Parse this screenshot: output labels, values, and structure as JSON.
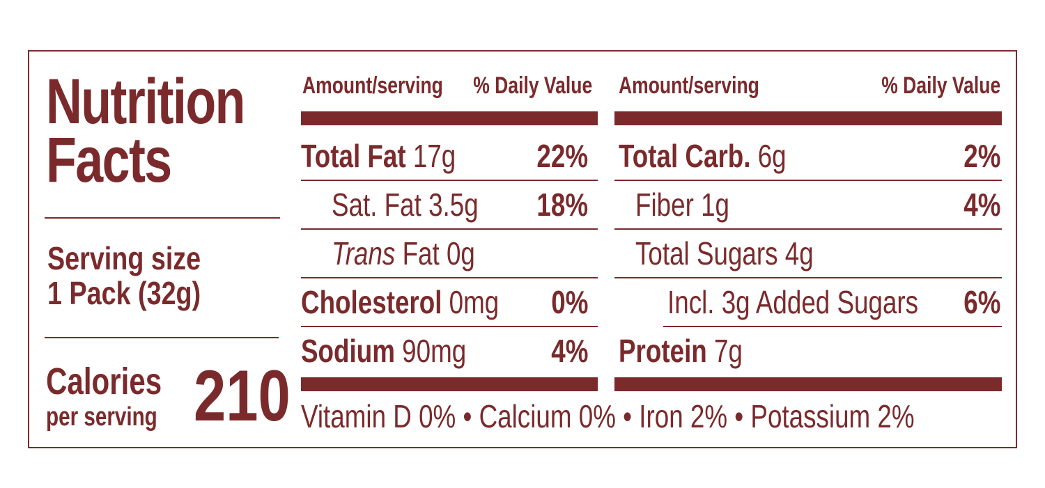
{
  "header": {
    "title_line1": "Nutrition",
    "title_line2": "Facts"
  },
  "serving": {
    "label": "Serving size",
    "value": "1 Pack (32g)"
  },
  "calories": {
    "label": "Calories",
    "sub": "per serving",
    "value": "210"
  },
  "columns": {
    "amount_header": "Amount/serving",
    "dv_header": "% Daily Value"
  },
  "left_rows": [
    {
      "name": "Total Fat",
      "amount": "17g",
      "pct": "22%"
    },
    {
      "name": "Sat. Fat",
      "amount": "3.5g",
      "pct": "18%"
    },
    {
      "name": "Trans",
      "amount": "Fat 0g",
      "pct": ""
    },
    {
      "name": "Cholesterol",
      "amount": "0mg",
      "pct": "0%"
    },
    {
      "name": "Sodium",
      "amount": "90mg",
      "pct": "4%"
    }
  ],
  "right_rows": [
    {
      "name": "Total Carb.",
      "amount": "6g",
      "pct": "2%"
    },
    {
      "name": "Fiber",
      "amount": "1g",
      "pct": "4%"
    },
    {
      "name": "Total Sugars",
      "amount": "4g",
      "pct": ""
    },
    {
      "name": "Incl. 3g Added Sugars",
      "amount": "",
      "pct": "6%"
    },
    {
      "name": "Protein",
      "amount": "7g",
      "pct": ""
    }
  ],
  "vitamins": "Vitamin D 0% • Calcium 0% • Iron 2% • Potassium 2%",
  "colors": {
    "ink": "#7b2a2c",
    "background": "#ffffff"
  }
}
